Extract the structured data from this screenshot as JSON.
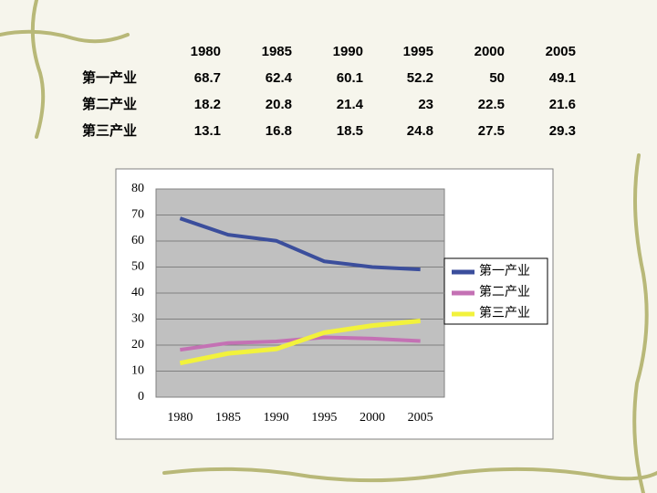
{
  "chart_data": {
    "type": "line",
    "categories": [
      "1980",
      "1985",
      "1990",
      "1995",
      "2000",
      "2005"
    ],
    "series": [
      {
        "name": "第一产业",
        "color": "#3b4e9c",
        "values": [
          68.7,
          62.4,
          60.1,
          52.2,
          50,
          49.1
        ]
      },
      {
        "name": "第二产业",
        "color": "#c471b4",
        "values": [
          18.2,
          20.8,
          21.4,
          23,
          22.5,
          21.6
        ]
      },
      {
        "name": "第三产业",
        "color": "#f2f23c",
        "values": [
          13.1,
          16.8,
          18.5,
          24.8,
          27.5,
          29.3
        ]
      }
    ],
    "ylim": [
      0,
      80
    ],
    "yticks": [
      0,
      10,
      20,
      30,
      40,
      50,
      60,
      70,
      80
    ],
    "grid": true,
    "legend": "right"
  }
}
